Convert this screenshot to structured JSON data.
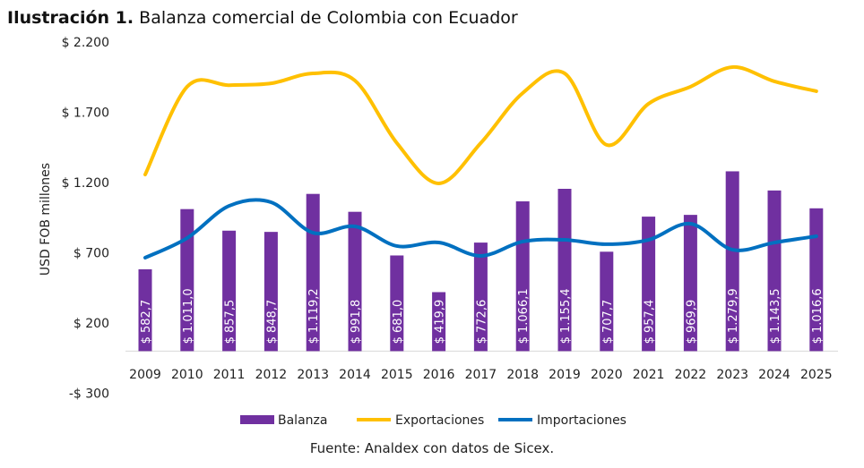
{
  "title_bold": "Ilustración 1.",
  "title_rest": "Balanza comercial de Colombia con Ecuador",
  "source": "Fuente: Analdex con datos de Sicex.",
  "chart_data": {
    "type": "bar+line",
    "ylabel": "USD FOB millones",
    "ylim": [
      -300,
      2200
    ],
    "yticks": [
      -300,
      200,
      700,
      1200,
      1700,
      2200
    ],
    "ytick_labels": [
      "-$ 300",
      "$ 200",
      "$ 700",
      "$ 1.200",
      "$ 1.700",
      "$ 2.200"
    ],
    "categories": [
      "2009",
      "2010",
      "2011",
      "2012",
      "2013",
      "2014",
      "2015",
      "2016",
      "2017",
      "2018",
      "2019",
      "2020",
      "2021",
      "2022",
      "2023",
      "2024",
      "2025"
    ],
    "legend_position": "bottom",
    "grid": false,
    "series": [
      {
        "name": "Balanza",
        "type": "bar",
        "color": "#7030a0",
        "values": [
          582.7,
          1011.0,
          857.5,
          848.7,
          1119.2,
          991.8,
          681.0,
          419.9,
          772.6,
          1066.1,
          1155.4,
          707.7,
          957.4,
          969.9,
          1279.9,
          1143.5,
          1016.6
        ],
        "labels": [
          "$ 582,7",
          "$ 1.011,0",
          "$ 857,5",
          "$ 848,7",
          "$ 1.119,2",
          "$ 991,8",
          "$ 681,0",
          "$ 419,9",
          "$ 772,6",
          "$ 1.066,1",
          "$ 1.155,4",
          "$ 707,7",
          "$ 957,4",
          "$ 969,9",
          "$ 1.279,9",
          "$ 1.143,5",
          "$ 1.016,6"
        ]
      },
      {
        "name": "Exportaciones",
        "type": "line",
        "color": "#ffc000",
        "values": [
          1257,
          1882,
          1893,
          1906,
          1977,
          1926,
          1481,
          1194,
          1481,
          1837,
          1977,
          1468,
          1761,
          1882,
          2022,
          1920,
          1850
        ]
      },
      {
        "name": "Importaciones",
        "type": "line",
        "color": "#0070c0",
        "values": [
          665,
          805,
          1034,
          1060,
          843,
          888,
          748,
          773,
          678,
          780,
          792,
          761,
          792,
          907,
          722,
          773,
          818
        ]
      }
    ]
  }
}
